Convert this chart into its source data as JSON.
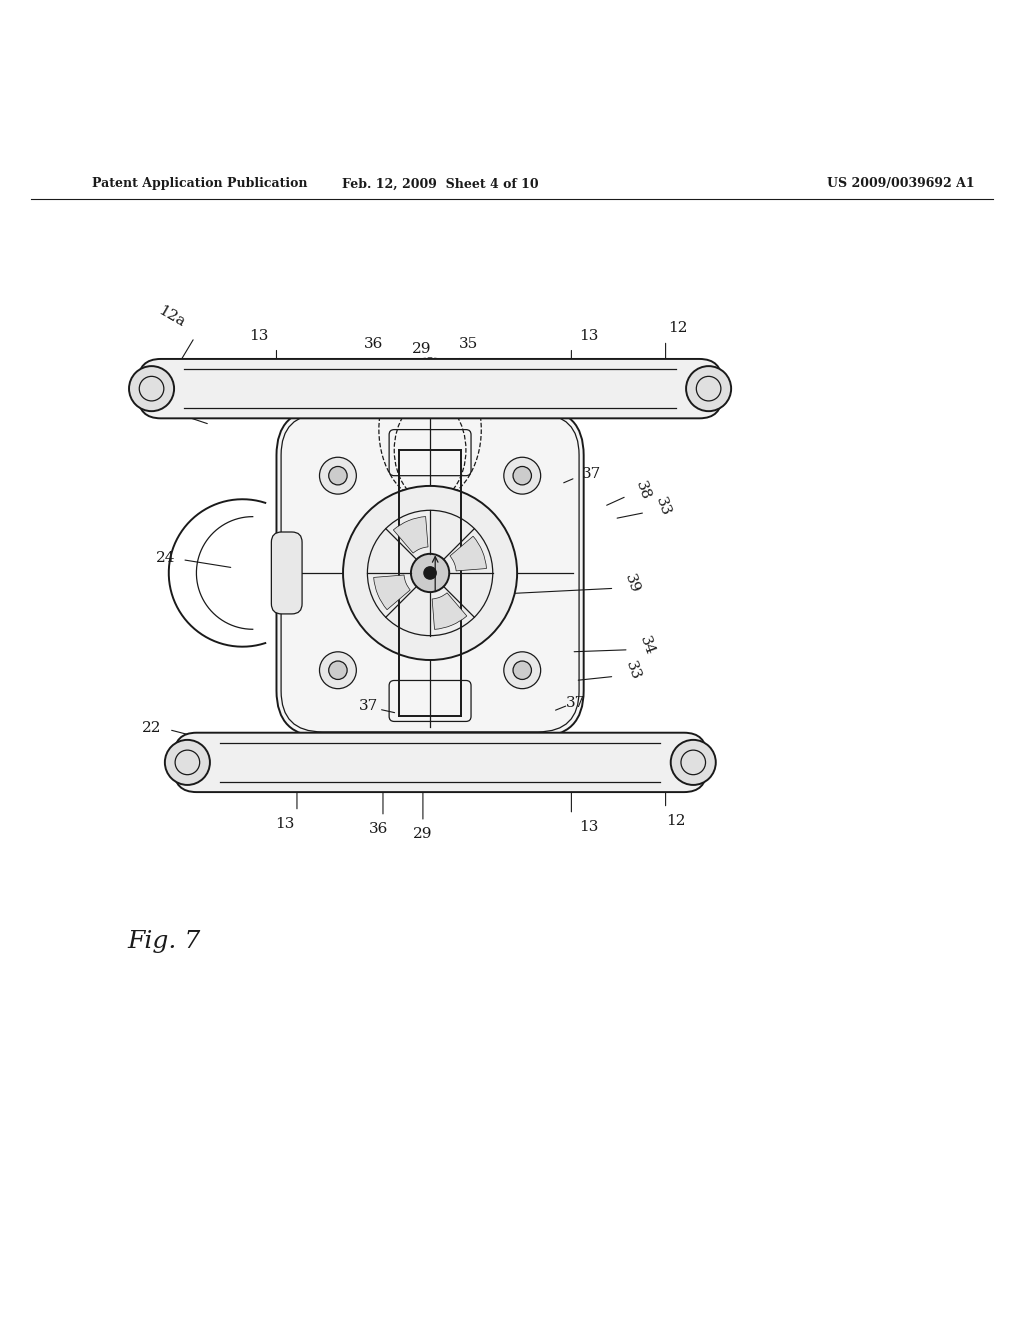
{
  "background_color": "#ffffff",
  "header_left": "Patent Application Publication",
  "header_mid": "Feb. 12, 2009  Sheet 4 of 10",
  "header_right": "US 2009/0039692 A1",
  "fig_label": "Fig. 7",
  "header_fontsize": 9,
  "fig_label_fontsize": 18,
  "line_color": "#1a1a1a",
  "label_fontsize": 11
}
